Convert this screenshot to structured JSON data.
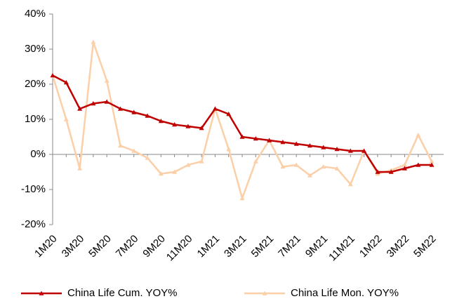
{
  "chart_data": {
    "type": "line",
    "categories": [
      "1M20",
      null,
      "3M20",
      null,
      "5M20",
      null,
      "7M20",
      null,
      "9M20",
      null,
      "11M20",
      null,
      "1M21",
      null,
      "3M21",
      null,
      "5M21",
      null,
      "7M21",
      null,
      "9M21",
      null,
      "11M21",
      null,
      "1M22",
      null,
      "3M22",
      null,
      "5M22"
    ],
    "series": [
      {
        "name": "China Life Cum. YOY%",
        "color": "#c00000",
        "values": [
          22.5,
          20.5,
          13,
          14.5,
          15,
          13,
          12,
          11,
          9.5,
          8.5,
          8,
          7.5,
          13,
          11.5,
          5,
          4.5,
          4,
          3.5,
          3,
          2.5,
          2,
          1.5,
          1,
          1,
          -5,
          -5,
          -4,
          -3,
          -3
        ]
      },
      {
        "name": "China Life Mon. YOY%",
        "color": "#fbcfa8",
        "values": [
          22.5,
          10,
          -4,
          32,
          21,
          2.5,
          1,
          -1,
          -5.5,
          -5,
          -3,
          -2,
          13,
          1.5,
          -12.5,
          -2,
          4,
          -3.5,
          -3,
          -6,
          -3.5,
          -4,
          -8.5,
          1,
          -5.5,
          -4.5,
          -3,
          5.5,
          -2
        ]
      }
    ],
    "ylim": [
      -20,
      40
    ],
    "yticks": [
      {
        "value": -20,
        "label": "-20%"
      },
      {
        "value": -10,
        "label": "-10%"
      },
      {
        "value": 0,
        "label": "0%"
      },
      {
        "value": 10,
        "label": "10%"
      },
      {
        "value": 20,
        "label": "20%"
      },
      {
        "value": 30,
        "label": "30%"
      },
      {
        "value": 40,
        "label": "40%"
      }
    ],
    "grid": false,
    "legend": "bottom"
  }
}
